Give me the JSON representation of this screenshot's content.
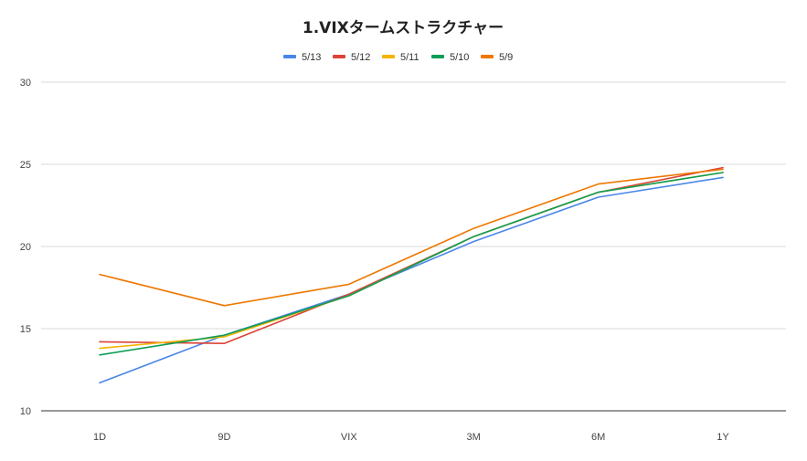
{
  "chart_data": {
    "type": "line",
    "title": "1.VIXタームストラクチャー",
    "xlabel": "",
    "ylabel": "",
    "categories": [
      "1D",
      "9D",
      "VIX",
      "3M",
      "6M",
      "1Y"
    ],
    "ylim": [
      10,
      30
    ],
    "yticks": [
      10,
      15,
      20,
      25,
      30
    ],
    "grid": true,
    "legend_position": "top",
    "series": [
      {
        "name": "5/13",
        "color": "#4a86e8",
        "values": [
          11.7,
          14.6,
          17.1,
          20.3,
          23.0,
          24.2
        ]
      },
      {
        "name": "5/12",
        "color": "#db4437",
        "values": [
          14.2,
          14.1,
          17.1,
          20.6,
          23.3,
          24.8
        ]
      },
      {
        "name": "5/11",
        "color": "#f4b400",
        "values": [
          13.8,
          14.5,
          17.0,
          20.6,
          23.3,
          24.5
        ]
      },
      {
        "name": "5/10",
        "color": "#0f9d58",
        "values": [
          13.4,
          14.6,
          17.0,
          20.6,
          23.3,
          24.5
        ]
      },
      {
        "name": "5/9",
        "color": "#ee7700",
        "values": [
          18.3,
          16.4,
          17.7,
          21.1,
          23.8,
          24.7
        ]
      }
    ]
  }
}
